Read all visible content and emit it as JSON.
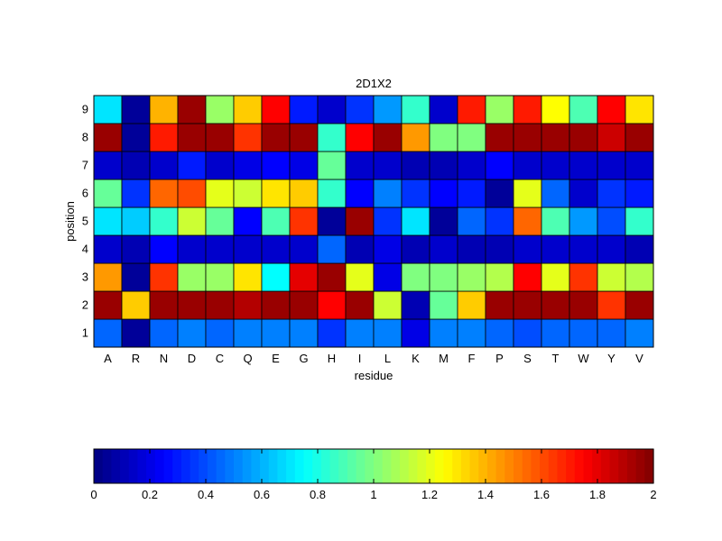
{
  "chart_data": {
    "type": "heatmap",
    "title": "2D1X2",
    "xlabel": "residue",
    "ylabel": "position",
    "x_categories": [
      "A",
      "R",
      "N",
      "D",
      "C",
      "Q",
      "E",
      "G",
      "H",
      "I",
      "L",
      "K",
      "M",
      "F",
      "P",
      "S",
      "T",
      "W",
      "Y",
      "V"
    ],
    "y_categories": [
      "1",
      "2",
      "3",
      "4",
      "5",
      "6",
      "7",
      "8",
      "9"
    ],
    "colormap": "jet",
    "clim": [
      0,
      2
    ],
    "colorbar": {
      "orientation": "horizontal",
      "placement": "bottom",
      "ticks": [
        0,
        0.2,
        0.4,
        0.6,
        0.8,
        1,
        1.2,
        1.4,
        1.6,
        1.8,
        2
      ],
      "tick_labels": [
        "0",
        "0.2",
        "0.4",
        "0.6",
        "0.8",
        "1",
        "1.2",
        "1.4",
        "1.6",
        "1.8",
        "2"
      ]
    },
    "values": [
      [
        0.45,
        0.05,
        0.45,
        0.5,
        0.45,
        0.5,
        0.5,
        0.5,
        0.35,
        0.5,
        0.5,
        0.2,
        0.5,
        0.5,
        0.45,
        0.4,
        0.45,
        0.45,
        0.45,
        0.5
      ],
      [
        1.95,
        1.35,
        1.95,
        1.95,
        1.95,
        1.9,
        1.95,
        1.95,
        1.75,
        1.95,
        1.15,
        0.1,
        0.95,
        1.35,
        1.95,
        1.95,
        1.95,
        1.95,
        1.65,
        1.95
      ],
      [
        1.45,
        0.05,
        1.65,
        1.05,
        1.05,
        1.3,
        0.75,
        1.8,
        1.95,
        1.2,
        0.2,
        1.0,
        1.0,
        1.05,
        1.1,
        1.75,
        1.2,
        1.65,
        1.15,
        1.1
      ],
      [
        0.15,
        0.1,
        0.25,
        0.15,
        0.15,
        0.15,
        0.15,
        0.15,
        0.45,
        0.1,
        0.2,
        0.1,
        0.15,
        0.1,
        0.1,
        0.15,
        0.15,
        0.15,
        0.15,
        0.1
      ],
      [
        0.7,
        0.65,
        0.85,
        1.15,
        0.95,
        0.25,
        0.9,
        1.65,
        0.05,
        1.95,
        0.35,
        0.7,
        0.05,
        0.45,
        0.35,
        1.55,
        0.9,
        0.55,
        0.4,
        0.85
      ],
      [
        0.95,
        0.35,
        1.55,
        1.6,
        1.2,
        1.15,
        1.3,
        1.35,
        0.85,
        0.25,
        0.5,
        0.35,
        0.25,
        0.3,
        0.05,
        1.2,
        0.45,
        0.15,
        0.35,
        0.3
      ],
      [
        0.15,
        0.1,
        0.15,
        0.3,
        0.15,
        0.2,
        0.25,
        0.2,
        0.95,
        0.15,
        0.15,
        0.1,
        0.1,
        0.15,
        0.25,
        0.15,
        0.15,
        0.15,
        0.15,
        0.15
      ],
      [
        1.95,
        0.05,
        1.7,
        1.95,
        1.95,
        1.65,
        1.95,
        1.95,
        0.85,
        1.75,
        1.95,
        1.45,
        1.0,
        1.0,
        1.95,
        1.95,
        1.95,
        1.95,
        1.85,
        1.95
      ],
      [
        0.7,
        0.05,
        1.4,
        1.95,
        1.05,
        1.35,
        1.75,
        0.3,
        0.15,
        0.35,
        0.55,
        0.85,
        0.15,
        1.7,
        1.05,
        1.7,
        1.25,
        0.9,
        1.75,
        1.3
      ]
    ]
  }
}
